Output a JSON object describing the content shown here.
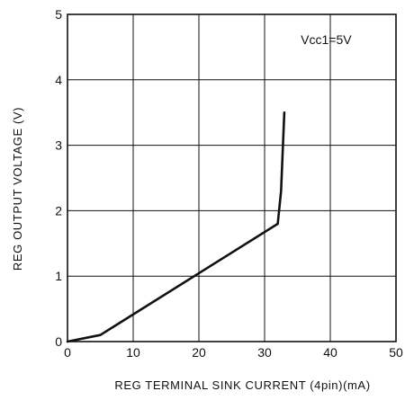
{
  "chart_data": {
    "type": "line",
    "title": "",
    "xlabel": "REG TERMINAL SINK CURRENT (4pin)(mA)",
    "ylabel": "REG OUTPUT VOLTAGE (V)",
    "xlim": [
      0,
      50
    ],
    "ylim": [
      0,
      5
    ],
    "x_ticks": [
      0,
      10,
      20,
      30,
      40,
      50
    ],
    "y_ticks": [
      0,
      1,
      2,
      3,
      4,
      5
    ],
    "grid": true,
    "annotation": "Vcc1=5V",
    "series": [
      {
        "x": [
          0,
          5,
          32,
          32.5,
          33
        ],
        "y": [
          0,
          0.1,
          1.8,
          2.3,
          3.5
        ]
      }
    ],
    "colors": {
      "line": "#111111",
      "grid": "#111111",
      "background": "#ffffff"
    }
  }
}
